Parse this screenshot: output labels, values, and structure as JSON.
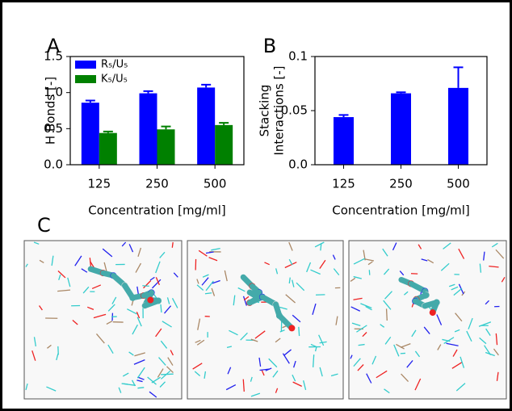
{
  "chart_data": [
    {
      "type": "bar",
      "panel_label": "A",
      "xlabel": "Concentration [mg/ml]",
      "ylabel": [
        "H Bonds [-]"
      ],
      "categories": [
        "125",
        "250",
        "500"
      ],
      "series": [
        {
          "name": "R₅/U₅",
          "color": "#0000ff",
          "values": [
            0.86,
            0.99,
            1.07
          ],
          "errors": [
            0.03,
            0.03,
            0.04
          ]
        },
        {
          "name": "K₅/U₅",
          "color": "#008000",
          "values": [
            0.44,
            0.49,
            0.55
          ],
          "errors": [
            0.02,
            0.04,
            0.03
          ]
        }
      ],
      "ylim": [
        0,
        1.5
      ],
      "yticks": [
        {
          "value": 0,
          "label": "0.0"
        },
        {
          "value": 0.5,
          "label": "0.5"
        },
        {
          "value": 1,
          "label": "1.0"
        },
        {
          "value": 1.5,
          "label": "1.5"
        }
      ],
      "legend": "upper left"
    },
    {
      "type": "bar",
      "panel_label": "B",
      "xlabel": "Concentration [mg/ml]",
      "ylabel": [
        "Stacking",
        "Interactions [-]"
      ],
      "categories": [
        "125",
        "250",
        "500"
      ],
      "series": [
        {
          "color": "#0000ff",
          "values": [
            0.044,
            0.066,
            0.071
          ],
          "errors": [
            0.002,
            0.001,
            0.019
          ]
        }
      ],
      "ylim": [
        0,
        0.1
      ],
      "yticks": [
        {
          "value": 0,
          "label": "0.0"
        },
        0.05,
        0.1
      ]
    }
  ],
  "panel_c": {
    "label": "C"
  }
}
